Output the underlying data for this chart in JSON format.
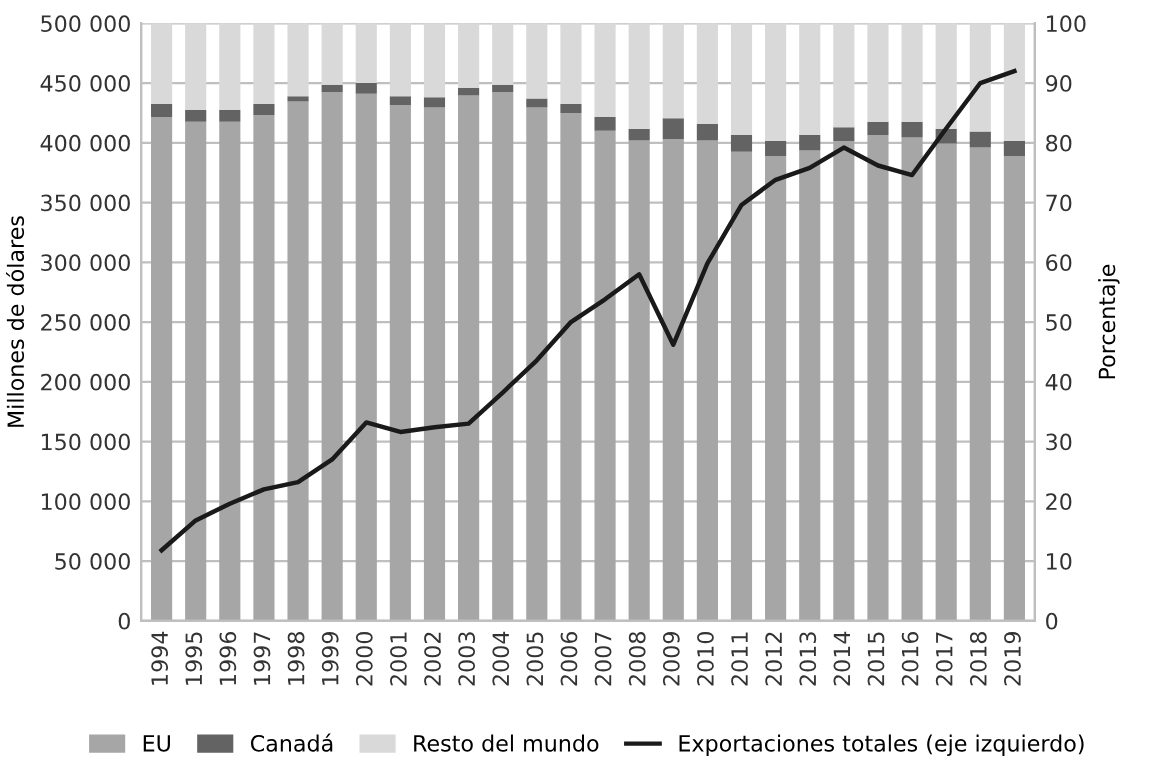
{
  "chart_data": {
    "type": "bar",
    "stacked": true,
    "ylabel": "Millones de dólares",
    "y2label": "Porcentaje",
    "categories": [
      "1994",
      "1995",
      "1996",
      "1997",
      "1998",
      "1999",
      "2000",
      "2001",
      "2002",
      "2003",
      "2004",
      "2005",
      "2006",
      "2007",
      "2008",
      "2009",
      "2010",
      "2011",
      "2012",
      "2013",
      "2014",
      "2015",
      "2016",
      "2017",
      "2018",
      "2019"
    ],
    "series": [
      {
        "name": "EU",
        "color": "#a6a6a6",
        "axis": "y2",
        "values": [
          84.3,
          83.5,
          83.5,
          84.6,
          86.9,
          88.5,
          88.2,
          86.3,
          85.9,
          87.9,
          88.5,
          85.9,
          85.0,
          82.0,
          80.4,
          80.6,
          80.4,
          78.5,
          77.8,
          78.7,
          80.3,
          81.3,
          80.9,
          79.9,
          79.2,
          77.8
        ]
      },
      {
        "name": "Canadá",
        "color": "#636363",
        "axis": "y2",
        "values": [
          2.2,
          2.0,
          2.0,
          1.9,
          0.9,
          1.2,
          1.8,
          1.5,
          1.7,
          1.3,
          1.2,
          1.5,
          1.5,
          2.3,
          1.9,
          3.5,
          2.8,
          2.8,
          2.5,
          2.6,
          2.3,
          2.2,
          2.6,
          2.4,
          2.7,
          2.5
        ]
      },
      {
        "name": "Resto del mundo",
        "color": "#d9d9d9",
        "axis": "y2",
        "values": [
          13.5,
          14.5,
          14.5,
          13.5,
          12.2,
          10.3,
          10.0,
          12.2,
          12.4,
          10.8,
          10.3,
          12.6,
          13.5,
          15.7,
          17.7,
          15.9,
          16.8,
          18.7,
          19.7,
          18.7,
          17.4,
          16.5,
          16.5,
          17.7,
          18.1,
          19.7
        ]
      },
      {
        "name": "Exportaciones totales (eje izquierdo)",
        "color": "#1a1a1a",
        "type": "line",
        "axis": "y",
        "values": [
          59000,
          84000,
          98000,
          110000,
          116000,
          135000,
          166000,
          158000,
          162000,
          165000,
          191000,
          218000,
          250000,
          269000,
          290000,
          231000,
          299000,
          348000,
          369000,
          379000,
          396000,
          381000,
          373000,
          412000,
          450000,
          460000
        ]
      }
    ],
    "ylim": [
      0,
      500000
    ],
    "yticks": [
      {
        "value": 0,
        "label": "0"
      },
      {
        "value": 50000,
        "label": "50 000"
      },
      {
        "value": 100000,
        "label": "100 000"
      },
      {
        "value": 150000,
        "label": "150 000"
      },
      {
        "value": 200000,
        "label": "200 000"
      },
      {
        "value": 250000,
        "label": "250 000"
      },
      {
        "value": 300000,
        "label": "300 000"
      },
      {
        "value": 350000,
        "label": "350 000"
      },
      {
        "value": 400000,
        "label": "400 000"
      },
      {
        "value": 450000,
        "label": "450 000"
      },
      {
        "value": 500000,
        "label": "500 000"
      }
    ],
    "y2lim": [
      0,
      100
    ],
    "y2ticks": [
      0,
      10,
      20,
      30,
      40,
      50,
      60,
      70,
      80,
      90,
      100
    ],
    "grid": "y",
    "legend": "bottom",
    "marker": "none",
    "line_style": "solid"
  }
}
